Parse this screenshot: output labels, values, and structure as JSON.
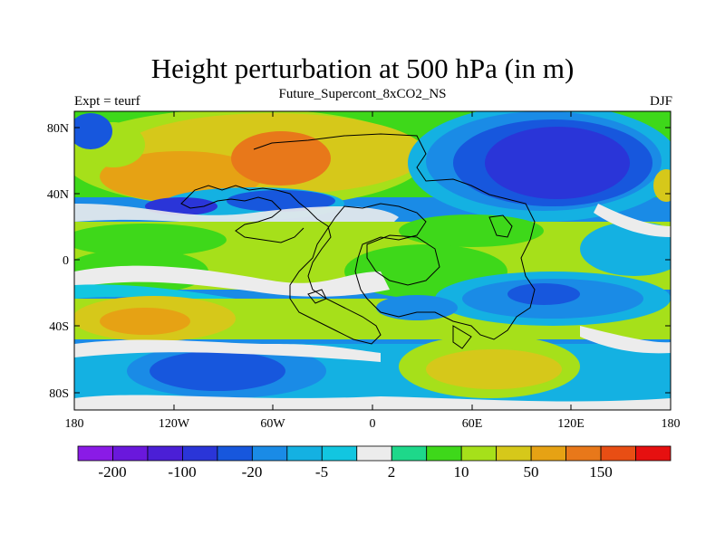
{
  "title": "Height perturbation at 500 hPa (in m)",
  "subtitle": "Future_Supercont_8xCO2_NS",
  "left_label": "Expt = teurf",
  "right_label": "DJF",
  "y_ticks": [
    "80N",
    "40N",
    "0",
    "40S",
    "80S"
  ],
  "x_ticks": [
    "180",
    "120W",
    "60W",
    "0",
    "60E",
    "120E",
    "180"
  ],
  "colorbar": {
    "colors": [
      "#8a1be6",
      "#6a18dc",
      "#4b1fd6",
      "#2a35d8",
      "#1757dd",
      "#1a8be6",
      "#14b1e2",
      "#12c6e0",
      "#ececec",
      "#1ed88a",
      "#3ed81a",
      "#a6e01a",
      "#d6c81a",
      "#e6a214",
      "#e8781a",
      "#e84e14",
      "#e61010"
    ],
    "labels": [
      "-200",
      "-100",
      "-20",
      "-5",
      "2",
      "10",
      "50",
      "150"
    ]
  },
  "palette": {
    "land_outline": "#000000",
    "background_gray": "#ececec"
  }
}
